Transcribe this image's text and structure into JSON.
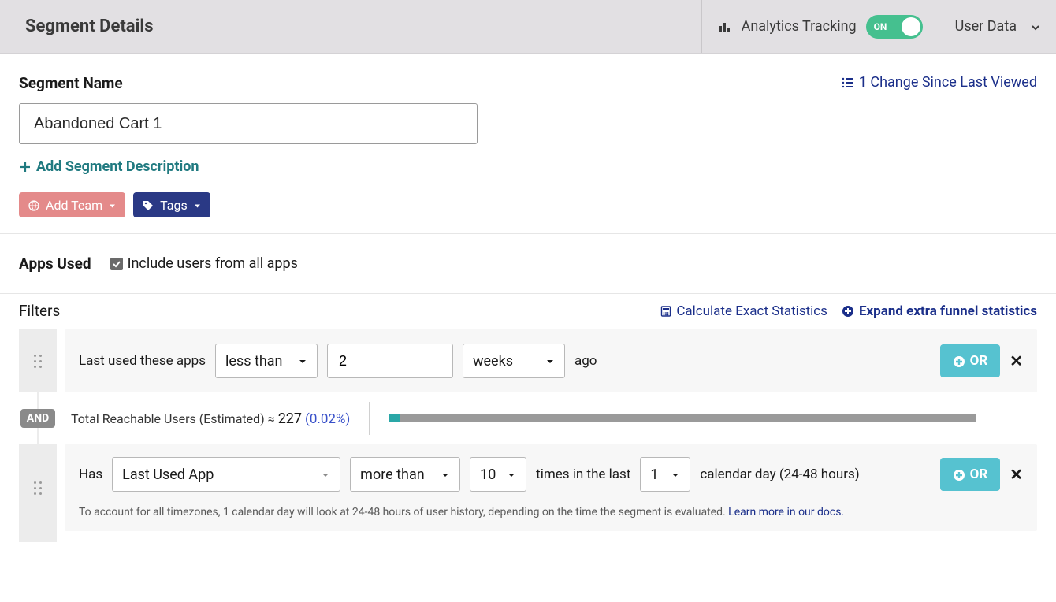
{
  "header": {
    "title": "Segment Details",
    "analytics_label": "Analytics Tracking",
    "toggle_text": "ON",
    "user_data_label": "User Data"
  },
  "segment": {
    "name_label": "Segment Name",
    "name_value": "Abandoned Cart 1",
    "changes_text": "1 Change Since Last Viewed",
    "add_description_label": "Add Segment Description",
    "add_team_label": "Add Team",
    "tags_label": "Tags"
  },
  "apps_used": {
    "label": "Apps Used",
    "checkbox_label": "Include users from all apps",
    "checked": true
  },
  "filters": {
    "title": "Filters",
    "calc_stats_label": "Calculate Exact Statistics",
    "expand_label": "Expand extra funnel statistics",
    "and_label": "AND",
    "or_label": "OR",
    "row1": {
      "prefix": "Last used these apps",
      "comparator": "less than",
      "value": "2",
      "unit": "weeks",
      "suffix": "ago"
    },
    "estimate": {
      "label": "Total Reachable Users (Estimated) ≈",
      "value": "227",
      "percent": "(0.02%)",
      "bar_grey_pct": 100,
      "bar_teal_pct": 2
    },
    "row2": {
      "prefix": "Has",
      "attribute": "Last Used App",
      "comparator": "more than",
      "count": "10",
      "mid": "times in the last",
      "days": "1",
      "suffix": "calendar day (24-48 hours)",
      "hint": "To account for all timezones, 1 calendar day will look at 24-48 hours of user history, depending on the time the segment is evaluated. ",
      "hint_link": "Learn more in our docs."
    }
  },
  "colors": {
    "toggle_bg": "#45c08f",
    "team_bg": "#e48a8a",
    "tags_bg": "#2a3985",
    "link_blue": "#1b2f8a",
    "teal_text": "#207a80",
    "or_bg": "#56c2d0",
    "bar_grey": "#9a9a9a",
    "bar_teal": "#2aa7a7"
  }
}
